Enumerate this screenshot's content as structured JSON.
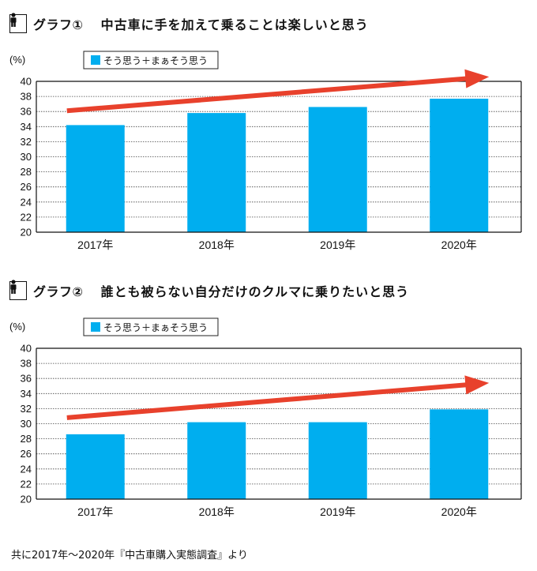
{
  "chart_data": [
    {
      "type": "bar",
      "graph_label": "グラフ①",
      "title": "中古車に手を加えて乗ることは楽しいと思う",
      "unit_label": "(%)",
      "legend": "そう思う＋まぁそう思う",
      "categories": [
        "2017年",
        "2018年",
        "2019年",
        "2020年"
      ],
      "values": [
        34.2,
        35.8,
        36.6,
        37.7
      ],
      "ylim": [
        20,
        40
      ],
      "yticks": [
        20,
        22,
        24,
        26,
        28,
        30,
        32,
        34,
        36,
        38,
        40
      ],
      "bar_color": "#00aeef",
      "arrow_color": "#e8412c",
      "trend_arrow": {
        "start_value": 36.1,
        "end_value": 40.6
      }
    },
    {
      "type": "bar",
      "graph_label": "グラフ②",
      "title": "誰とも被らない自分だけのクルマに乗りたいと思う",
      "unit_label": "(%)",
      "legend": "そう思う＋まぁそう思う",
      "categories": [
        "2017年",
        "2018年",
        "2019年",
        "2020年"
      ],
      "values": [
        28.6,
        30.2,
        30.2,
        31.9
      ],
      "ylim": [
        20,
        40
      ],
      "yticks": [
        20,
        22,
        24,
        26,
        28,
        30,
        32,
        34,
        36,
        38,
        40
      ],
      "bar_color": "#00aeef",
      "arrow_color": "#e8412c",
      "trend_arrow": {
        "start_value": 30.8,
        "end_value": 35.4
      }
    }
  ],
  "source": "共に2017年～2020年『中古車購入実態調査』より"
}
